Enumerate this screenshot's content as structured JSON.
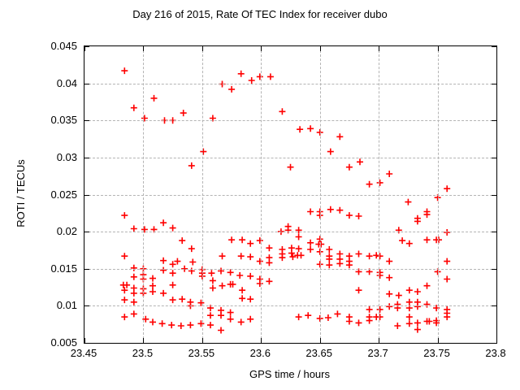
{
  "title": "Day 216 of 2015, Rate Of TEC Index for receiver dubo",
  "colors": {
    "background": "#ffffff",
    "grid": "#b4b4b4",
    "axis": "#000000",
    "marker": "#ff0000"
  },
  "chart_data": {
    "type": "scatter",
    "title": "Day 216 of 2015, Rate Of TEC Index for receiver dubo",
    "xlabel": "GPS time / hours",
    "ylabel": "ROTI / TECUs",
    "xlim": [
      23.45,
      23.8
    ],
    "ylim": [
      0.005,
      0.045
    ],
    "grid": true,
    "legend": "none",
    "marker": {
      "shape": "plus",
      "color": "#ff0000",
      "size": 9
    },
    "xticks": {
      "values": [
        23.45,
        23.5,
        23.55,
        23.6,
        23.65,
        23.7,
        23.75,
        23.8
      ],
      "labels": [
        "23.45",
        "23.5",
        "23.55",
        "23.6",
        "23.65",
        "23.7",
        "23.75",
        "23.8"
      ]
    },
    "yticks": {
      "values": [
        0.005,
        0.01,
        0.015,
        0.02,
        0.025,
        0.03,
        0.035,
        0.04,
        0.045
      ],
      "labels": [
        "0.005",
        "0.01",
        "0.015",
        "0.02",
        "0.025",
        "0.03",
        "0.035",
        "0.04",
        "0.045"
      ]
    },
    "series": [
      {
        "name": "ROTI",
        "points": [
          [
            23.484,
            0.0417
          ],
          [
            23.509,
            0.038
          ],
          [
            23.492,
            0.0367
          ],
          [
            23.501,
            0.0353
          ],
          [
            23.518,
            0.035
          ],
          [
            23.525,
            0.035
          ],
          [
            23.534,
            0.036
          ],
          [
            23.583,
            0.0413
          ],
          [
            23.592,
            0.0404
          ],
          [
            23.599,
            0.0409
          ],
          [
            23.608,
            0.0409
          ],
          [
            23.567,
            0.0399
          ],
          [
            23.575,
            0.0392
          ],
          [
            23.618,
            0.0362
          ],
          [
            23.559,
            0.0353
          ],
          [
            23.633,
            0.0338
          ],
          [
            23.642,
            0.0339
          ],
          [
            23.65,
            0.0334
          ],
          [
            23.667,
            0.0328
          ],
          [
            23.551,
            0.0308
          ],
          [
            23.541,
            0.0289
          ],
          [
            23.625,
            0.0287
          ],
          [
            23.659,
            0.0308
          ],
          [
            23.684,
            0.0294
          ],
          [
            23.675,
            0.0287
          ],
          [
            23.709,
            0.0278
          ],
          [
            23.692,
            0.0264
          ],
          [
            23.701,
            0.0266
          ],
          [
            23.758,
            0.0258
          ],
          [
            23.75,
            0.0246
          ],
          [
            23.725,
            0.024
          ],
          [
            23.484,
            0.0222
          ],
          [
            23.492,
            0.0204
          ],
          [
            23.501,
            0.0203
          ],
          [
            23.509,
            0.0203
          ],
          [
            23.517,
            0.0212
          ],
          [
            23.525,
            0.0205
          ],
          [
            23.533,
            0.0188
          ],
          [
            23.617,
            0.02
          ],
          [
            23.623,
            0.0207
          ],
          [
            23.623,
            0.0202
          ],
          [
            23.642,
            0.0227
          ],
          [
            23.65,
            0.0227
          ],
          [
            23.65,
            0.0222
          ],
          [
            23.659,
            0.023
          ],
          [
            23.667,
            0.0229
          ],
          [
            23.675,
            0.0222
          ],
          [
            23.683,
            0.0221
          ],
          [
            23.717,
            0.0202
          ],
          [
            23.741,
            0.0227
          ],
          [
            23.741,
            0.0223
          ],
          [
            23.733,
            0.0218
          ],
          [
            23.733,
            0.0214
          ],
          [
            23.758,
            0.0199
          ],
          [
            23.575,
            0.0189
          ],
          [
            23.584,
            0.0189
          ],
          [
            23.591,
            0.0184
          ],
          [
            23.599,
            0.0188
          ],
          [
            23.541,
            0.0177
          ],
          [
            23.542,
            0.0159
          ],
          [
            23.567,
            0.0167
          ],
          [
            23.583,
            0.0167
          ],
          [
            23.591,
            0.0166
          ],
          [
            23.599,
            0.016
          ],
          [
            23.607,
            0.0178
          ],
          [
            23.607,
            0.0165
          ],
          [
            23.607,
            0.0158
          ],
          [
            23.618,
            0.0176
          ],
          [
            23.618,
            0.017
          ],
          [
            23.618,
            0.0165
          ],
          [
            23.626,
            0.0178
          ],
          [
            23.626,
            0.0171
          ],
          [
            23.627,
            0.0166
          ],
          [
            23.632,
            0.0202
          ],
          [
            23.632,
            0.0193
          ],
          [
            23.632,
            0.0177
          ],
          [
            23.631,
            0.0168
          ],
          [
            23.634,
            0.0168
          ],
          [
            23.642,
            0.0185
          ],
          [
            23.642,
            0.0176
          ],
          [
            23.65,
            0.019
          ],
          [
            23.649,
            0.0183
          ],
          [
            23.651,
            0.0183
          ],
          [
            23.65,
            0.0173
          ],
          [
            23.65,
            0.0156
          ],
          [
            23.658,
            0.0176
          ],
          [
            23.658,
            0.0167
          ],
          [
            23.658,
            0.0163
          ],
          [
            23.658,
            0.0155
          ],
          [
            23.667,
            0.017
          ],
          [
            23.667,
            0.0163
          ],
          [
            23.667,
            0.0157
          ],
          [
            23.675,
            0.0167
          ],
          [
            23.675,
            0.016
          ],
          [
            23.675,
            0.0155
          ],
          [
            23.683,
            0.017
          ],
          [
            23.692,
            0.0167
          ],
          [
            23.698,
            0.0168
          ],
          [
            23.701,
            0.0167
          ],
          [
            23.709,
            0.016
          ],
          [
            23.683,
            0.0146
          ],
          [
            23.692,
            0.0146
          ],
          [
            23.701,
            0.0145
          ],
          [
            23.701,
            0.0141
          ],
          [
            23.709,
            0.0138
          ],
          [
            23.683,
            0.0121
          ],
          [
            23.709,
            0.0116
          ],
          [
            23.717,
            0.0114
          ],
          [
            23.726,
            0.0184
          ],
          [
            23.741,
            0.0189
          ],
          [
            23.749,
            0.0189
          ],
          [
            23.751,
            0.0189
          ],
          [
            23.758,
            0.016
          ],
          [
            23.75,
            0.0146
          ],
          [
            23.758,
            0.0136
          ],
          [
            23.726,
            0.0121
          ],
          [
            23.733,
            0.0119
          ],
          [
            23.741,
            0.0127
          ],
          [
            23.72,
            0.0188
          ],
          [
            23.484,
            0.0167
          ],
          [
            23.492,
            0.0151
          ],
          [
            23.5,
            0.015
          ],
          [
            23.492,
            0.0139
          ],
          [
            23.5,
            0.0142
          ],
          [
            23.5,
            0.0136
          ],
          [
            23.508,
            0.0137
          ],
          [
            23.483,
            0.0128
          ],
          [
            23.486,
            0.0128
          ],
          [
            23.484,
            0.0121
          ],
          [
            23.492,
            0.0124
          ],
          [
            23.492,
            0.0117
          ],
          [
            23.5,
            0.0123
          ],
          [
            23.5,
            0.0117
          ],
          [
            23.508,
            0.0127
          ],
          [
            23.508,
            0.0119
          ],
          [
            23.484,
            0.0108
          ],
          [
            23.492,
            0.0105
          ],
          [
            23.517,
            0.0161
          ],
          [
            23.517,
            0.0148
          ],
          [
            23.525,
            0.0156
          ],
          [
            23.529,
            0.016
          ],
          [
            23.525,
            0.0144
          ],
          [
            23.535,
            0.015
          ],
          [
            23.525,
            0.0128
          ],
          [
            23.517,
            0.0117
          ],
          [
            23.525,
            0.0108
          ],
          [
            23.533,
            0.0109
          ],
          [
            23.484,
            0.0085
          ],
          [
            23.492,
            0.0089
          ],
          [
            23.502,
            0.0082
          ],
          [
            23.508,
            0.0078
          ],
          [
            23.516,
            0.0076
          ],
          [
            23.524,
            0.0074
          ],
          [
            23.532,
            0.0073
          ],
          [
            23.541,
            0.0147
          ],
          [
            23.55,
            0.0149
          ],
          [
            23.55,
            0.0144
          ],
          [
            23.55,
            0.014
          ],
          [
            23.558,
            0.0144
          ],
          [
            23.566,
            0.0147
          ],
          [
            23.574,
            0.0145
          ],
          [
            23.582,
            0.0141
          ],
          [
            23.591,
            0.014
          ],
          [
            23.559,
            0.0134
          ],
          [
            23.559,
            0.0124
          ],
          [
            23.567,
            0.0127
          ],
          [
            23.574,
            0.0129
          ],
          [
            23.576,
            0.0129
          ],
          [
            23.599,
            0.0136
          ],
          [
            23.599,
            0.013
          ],
          [
            23.584,
            0.0121
          ],
          [
            23.584,
            0.011
          ],
          [
            23.591,
            0.0109
          ],
          [
            23.607,
            0.0133
          ],
          [
            23.54,
            0.0105
          ],
          [
            23.54,
            0.01
          ],
          [
            23.549,
            0.0104
          ],
          [
            23.557,
            0.0097
          ],
          [
            23.557,
            0.0087
          ],
          [
            23.566,
            0.0094
          ],
          [
            23.566,
            0.0087
          ],
          [
            23.574,
            0.0091
          ],
          [
            23.574,
            0.0082
          ],
          [
            23.583,
            0.0078
          ],
          [
            23.591,
            0.0082
          ],
          [
            23.54,
            0.0074
          ],
          [
            23.549,
            0.0076
          ],
          [
            23.557,
            0.0074
          ],
          [
            23.566,
            0.0067
          ],
          [
            23.632,
            0.0085
          ],
          [
            23.64,
            0.0087
          ],
          [
            23.65,
            0.0083
          ],
          [
            23.657,
            0.0084
          ],
          [
            23.665,
            0.0089
          ],
          [
            23.675,
            0.0085
          ],
          [
            23.675,
            0.0079
          ],
          [
            23.683,
            0.0077
          ],
          [
            23.692,
            0.0095
          ],
          [
            23.692,
            0.0085
          ],
          [
            23.692,
            0.008
          ],
          [
            23.698,
            0.0085
          ],
          [
            23.701,
            0.0085
          ],
          [
            23.701,
            0.0095
          ],
          [
            23.709,
            0.0099
          ],
          [
            23.716,
            0.0102
          ],
          [
            23.716,
            0.0097
          ],
          [
            23.716,
            0.0073
          ],
          [
            23.726,
            0.0105
          ],
          [
            23.726,
            0.0097
          ],
          [
            23.726,
            0.0085
          ],
          [
            23.726,
            0.0076
          ],
          [
            23.733,
            0.0105
          ],
          [
            23.733,
            0.0099
          ],
          [
            23.733,
            0.0077
          ],
          [
            23.733,
            0.0068
          ],
          [
            23.741,
            0.0102
          ],
          [
            23.741,
            0.0079
          ],
          [
            23.743,
            0.0079
          ],
          [
            23.749,
            0.0097
          ],
          [
            23.749,
            0.008
          ],
          [
            23.749,
            0.0077
          ],
          [
            23.758,
            0.0095
          ],
          [
            23.758,
            0.009
          ],
          [
            23.758,
            0.0085
          ]
        ]
      }
    ]
  }
}
